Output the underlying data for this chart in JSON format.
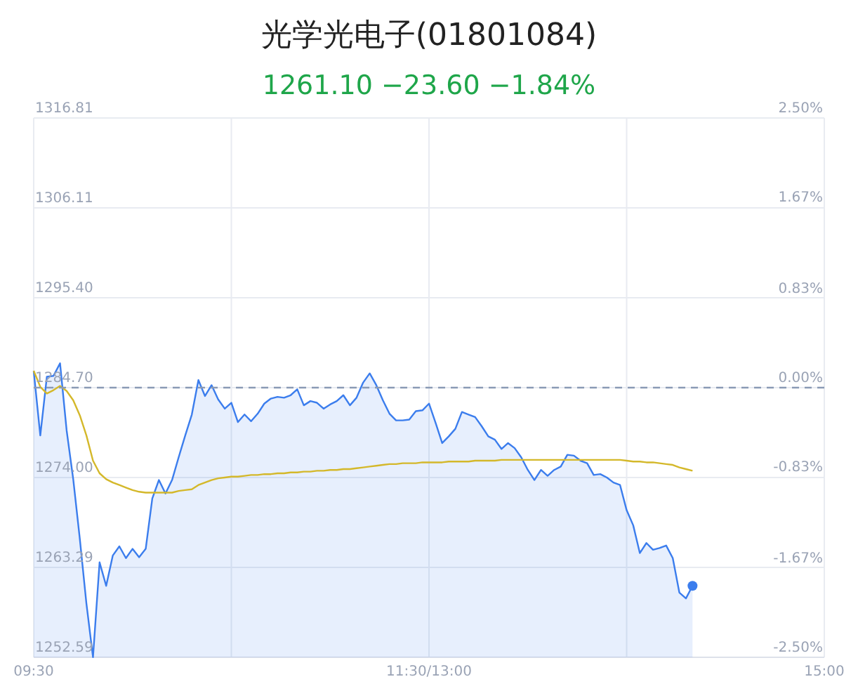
{
  "chart_data": {
    "type": "area",
    "title": "光学光电子(01801084)",
    "subtitle": "1261.10 −23.60 −1.84%",
    "categories": [
      "09:30",
      null,
      null,
      null,
      null,
      null,
      null,
      null,
      null,
      null,
      null,
      null,
      null,
      null,
      null,
      null,
      null,
      null,
      null,
      null,
      null,
      null,
      null,
      null,
      null,
      null,
      null,
      null,
      null,
      null,
      null,
      null,
      null,
      null,
      null,
      null,
      null,
      null,
      null,
      null,
      null,
      null,
      null,
      null,
      null,
      null,
      null,
      null,
      null,
      null,
      null,
      null,
      null,
      null,
      null,
      null,
      null,
      null,
      null,
      null,
      "11:30/13:00",
      null,
      null,
      null,
      null,
      null,
      null,
      null,
      null,
      null,
      null,
      null,
      null,
      null,
      null,
      null,
      null,
      null,
      null,
      null,
      null,
      null,
      null,
      null,
      null,
      null,
      null,
      null,
      null,
      null,
      null,
      null,
      null,
      null,
      null,
      null,
      null,
      null,
      null,
      null,
      null,
      null,
      null,
      null,
      null,
      null,
      null,
      null,
      null,
      null,
      null,
      null,
      null,
      null,
      null,
      null,
      null,
      null,
      null,
      null,
      "15:00"
    ],
    "ylim": [
      1252.59,
      1316.81
    ],
    "yticks": [
      1252.59,
      1263.29,
      {
        "value": 1274,
        "label": "1274.00"
      },
      {
        "value": 1284.7,
        "label": "1284.70"
      },
      {
        "value": 1295.4,
        "label": "1295.40"
      },
      1306.11,
      1316.81
    ],
    "y2lim": [
      -2.5,
      2.5
    ],
    "y2ticks": [
      {
        "value": -2.5,
        "label": "-2.50%"
      },
      {
        "value": -1.67,
        "label": "-1.67%"
      },
      {
        "value": -0.83,
        "label": "-0.83%"
      },
      {
        "value": 0,
        "label": "0.00%"
      },
      {
        "value": 0.83,
        "label": "0.83%"
      },
      {
        "value": 1.67,
        "label": "1.67%"
      },
      {
        "value": 2.5,
        "label": "2.50%"
      }
    ],
    "grid": true,
    "ref_lines": [
      {
        "axis": "y",
        "value": 1284.7,
        "color": "#8a9ab5",
        "line_style": "dashed"
      }
    ],
    "series": [
      {
        "color": "#3b7ded",
        "values": [
          1286.7,
          1279.0,
          1286.0,
          1286.1,
          1287.6,
          1279.6,
          1273.8,
          1266.7,
          1259.0,
          1252.6,
          1263.9,
          1261.1,
          1264.7,
          1265.8,
          1264.4,
          1265.5,
          1264.5,
          1265.5,
          1271.5,
          1273.7,
          1272.1,
          1273.7,
          1276.4,
          1279.0,
          1281.5,
          1285.6,
          1283.7,
          1285.0,
          1283.3,
          1282.2,
          1282.9,
          1280.6,
          1281.5,
          1280.7,
          1281.6,
          1282.8,
          1283.4,
          1283.6,
          1283.5,
          1283.8,
          1284.5,
          1282.6,
          1283.1,
          1282.9,
          1282.2,
          1282.7,
          1283.1,
          1283.8,
          1282.6,
          1283.5,
          1285.3,
          1286.4,
          1285.0,
          1283.2,
          1281.6,
          1280.8,
          1280.8,
          1280.9,
          1281.9,
          1282.0,
          1282.8,
          1280.5,
          1278.1,
          1278.9,
          1279.8,
          1281.8,
          1281.5,
          1281.2,
          1280.1,
          1278.9,
          1278.5,
          1277.4,
          1278.1,
          1277.5,
          1276.4,
          1274.9,
          1273.7,
          1274.9,
          1274.2,
          1274.9,
          1275.3,
          1276.7,
          1276.6,
          1276.0,
          1275.7,
          1274.3,
          1274.4,
          1274.0,
          1273.4,
          1273.1,
          1270.1,
          1268.3,
          1265.0,
          1266.2,
          1265.4,
          1265.6,
          1265.9,
          1264.4,
          1260.3,
          1259.6,
          1261.1,
          null,
          null,
          null,
          null,
          null,
          null,
          null,
          null,
          null,
          null,
          null,
          null,
          null,
          null,
          null,
          null,
          null,
          null,
          null,
          null
        ]
      },
      {
        "type": "line",
        "color": "#d4b82a",
        "values": [
          1286.7,
          1284.8,
          1284.0,
          1284.4,
          1284.9,
          1284.3,
          1283.2,
          1281.4,
          1279.0,
          1276.0,
          1274.5,
          1273.8,
          1273.4,
          1273.1,
          1272.8,
          1272.5,
          1272.3,
          1272.2,
          1272.2,
          1272.2,
          1272.2,
          1272.2,
          1272.4,
          1272.5,
          1272.6,
          1273.1,
          1273.4,
          1273.7,
          1273.9,
          1274.0,
          1274.1,
          1274.1,
          1274.2,
          1274.3,
          1274.3,
          1274.4,
          1274.4,
          1274.5,
          1274.5,
          1274.6,
          1274.6,
          1274.7,
          1274.7,
          1274.8,
          1274.8,
          1274.9,
          1274.9,
          1275.0,
          1275.0,
          1275.1,
          1275.2,
          1275.3,
          1275.4,
          1275.5,
          1275.6,
          1275.6,
          1275.7,
          1275.7,
          1275.7,
          1275.8,
          1275.8,
          1275.8,
          1275.8,
          1275.9,
          1275.9,
          1275.9,
          1275.9,
          1276.0,
          1276.0,
          1276.0,
          1276.0,
          1276.1,
          1276.1,
          1276.1,
          1276.1,
          1276.1,
          1276.1,
          1276.1,
          1276.1,
          1276.1,
          1276.1,
          1276.1,
          1276.1,
          1276.1,
          1276.1,
          1276.1,
          1276.1,
          1276.1,
          1276.1,
          1276.1,
          1276.0,
          1275.9,
          1275.9,
          1275.8,
          1275.8,
          1275.7,
          1275.6,
          1275.5,
          1275.2,
          1275.0,
          1274.8,
          null,
          null,
          null,
          null,
          null,
          null,
          null,
          null,
          null,
          null,
          null,
          null,
          null,
          null,
          null,
          null,
          null,
          null,
          null,
          null
        ]
      }
    ]
  }
}
